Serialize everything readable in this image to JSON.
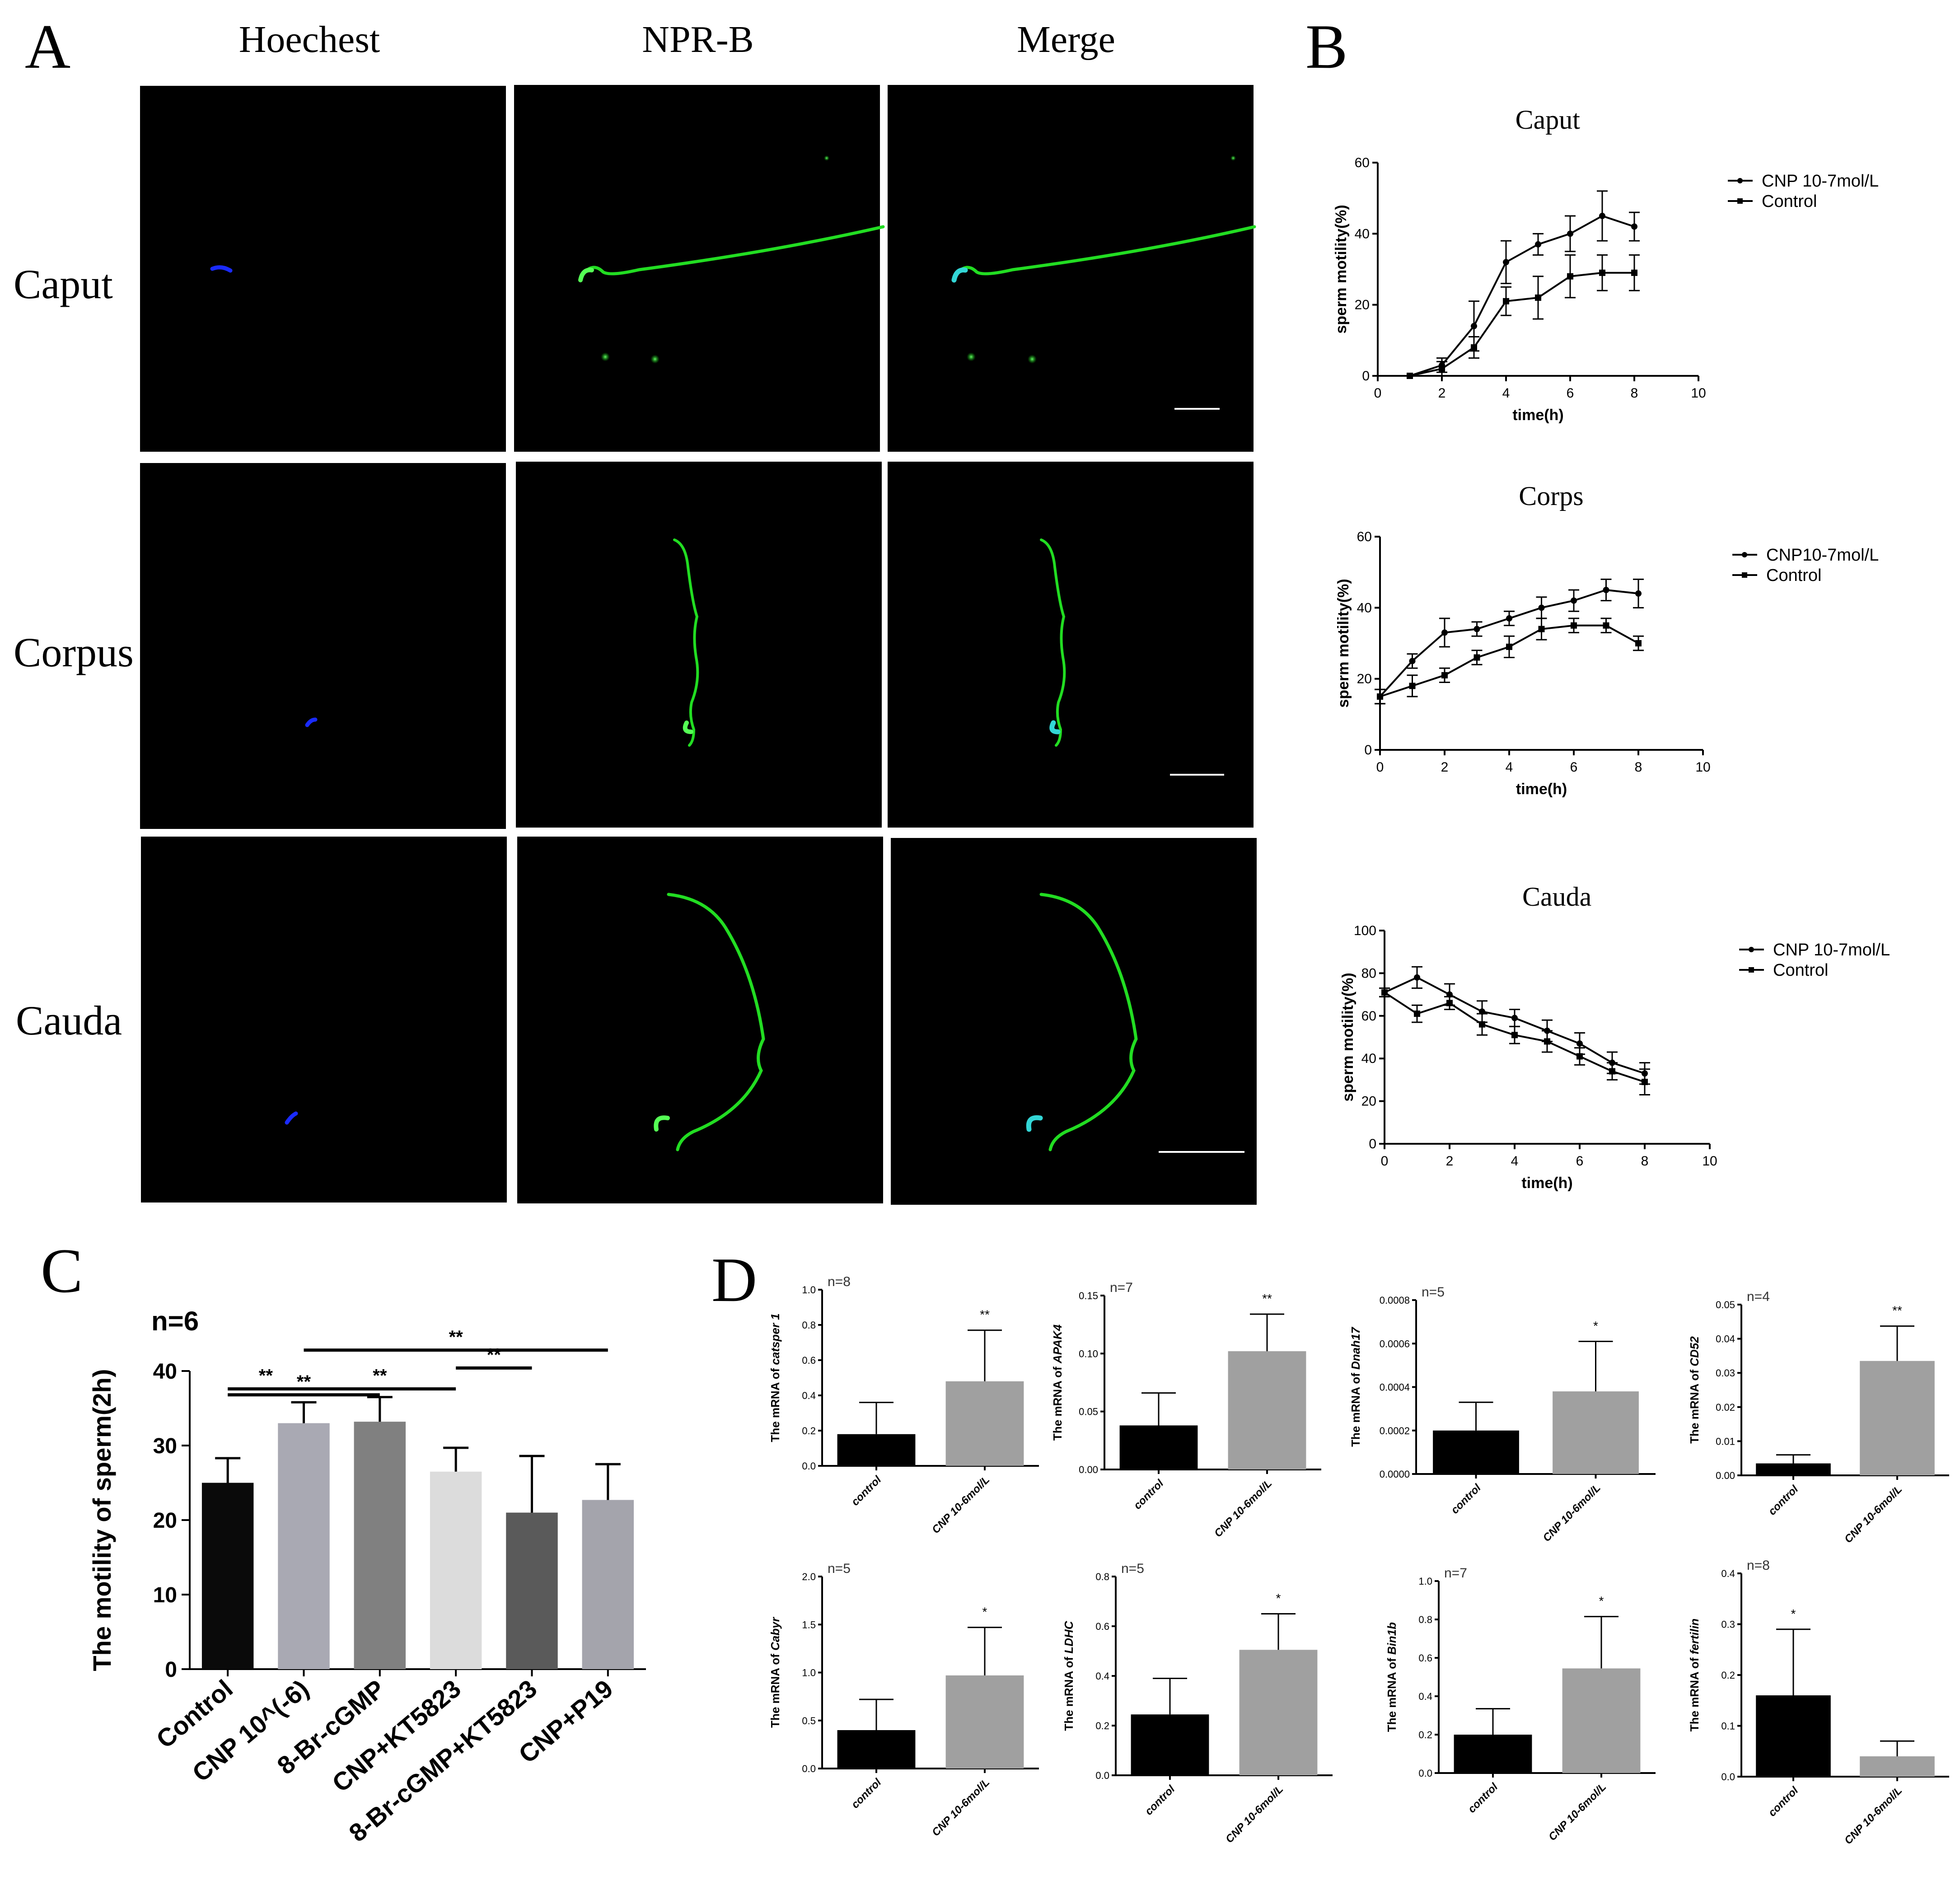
{
  "panel_labels": [
    "A",
    "B",
    "C",
    "D"
  ],
  "micrographs": {
    "columns": [
      "Hoechest",
      "NPR-B",
      "Merge"
    ],
    "rows": [
      "Caput",
      "Corpus",
      "Cauda"
    ],
    "background": "#000000",
    "nucleus_color": "#1a2bff",
    "receptor_color": "#22dd22",
    "merge_head_color": "#33d6d6"
  },
  "chart_data": [
    {
      "id": "B1",
      "type": "line",
      "title": "Caput",
      "xlabel": "time(h)",
      "ylabel": "sperm motility(%)",
      "xlim": [
        0,
        10
      ],
      "ylim": [
        0,
        60
      ],
      "xticks": [
        0,
        2,
        4,
        6,
        8,
        10
      ],
      "yticks": [
        0,
        20,
        40,
        60
      ],
      "grid": false,
      "legend": "right",
      "series": [
        {
          "name": "CNP 10-7mol/L",
          "x": [
            1,
            2,
            3,
            4,
            5,
            6,
            7,
            8
          ],
          "y": [
            0,
            3,
            14,
            32,
            37,
            40,
            45,
            42
          ],
          "err": [
            0,
            2,
            7,
            6,
            3,
            5,
            7,
            4
          ]
        },
        {
          "name": "Control",
          "x": [
            1,
            2,
            3,
            4,
            5,
            6,
            7,
            8
          ],
          "y": [
            0,
            2,
            8,
            21,
            22,
            28,
            29,
            29
          ],
          "err": [
            0,
            2,
            3,
            4,
            6,
            6,
            5,
            5
          ]
        }
      ]
    },
    {
      "id": "B2",
      "type": "line",
      "title": "Corps",
      "xlabel": "time(h)",
      "ylabel": "sperm motility(%)",
      "xlim": [
        0,
        10
      ],
      "ylim": [
        0,
        60
      ],
      "xticks": [
        0,
        2,
        4,
        6,
        8,
        10
      ],
      "yticks": [
        0,
        20,
        40,
        60
      ],
      "grid": false,
      "legend": "right",
      "series": [
        {
          "name": "CNP10-7mol/L",
          "x": [
            0,
            1,
            2,
            3,
            4,
            5,
            6,
            7,
            8
          ],
          "y": [
            15,
            25,
            33,
            34,
            37,
            40,
            42,
            45,
            44
          ],
          "err": [
            2,
            2,
            4,
            2,
            2,
            3,
            3,
            3,
            4
          ]
        },
        {
          "name": "Control",
          "x": [
            0,
            1,
            2,
            3,
            4,
            5,
            6,
            7,
            8
          ],
          "y": [
            15,
            18,
            21,
            26,
            29,
            34,
            35,
            35,
            30
          ],
          "err": [
            2,
            3,
            2,
            2,
            3,
            3,
            2,
            2,
            2
          ]
        }
      ]
    },
    {
      "id": "B3",
      "type": "line",
      "title": "Cauda",
      "xlabel": "time(h)",
      "ylabel": "sperm motility(%)",
      "xlim": [
        0,
        10
      ],
      "ylim": [
        0,
        100
      ],
      "xticks": [
        0,
        2,
        4,
        6,
        8,
        10
      ],
      "yticks": [
        0,
        20,
        40,
        60,
        80,
        100
      ],
      "grid": false,
      "legend": "right",
      "series": [
        {
          "name": "CNP 10-7mol/L",
          "x": [
            0,
            1,
            2,
            3,
            4,
            5,
            6,
            7,
            8
          ],
          "y": [
            71,
            78,
            70,
            62,
            59,
            53,
            47,
            38,
            33
          ],
          "err": [
            2,
            5,
            5,
            5,
            4,
            5,
            5,
            5,
            5
          ]
        },
        {
          "name": "Control",
          "x": [
            0,
            1,
            2,
            3,
            4,
            5,
            6,
            7,
            8
          ],
          "y": [
            71,
            61,
            66,
            56,
            51,
            48,
            41,
            34,
            29
          ],
          "err": [
            2,
            4,
            3,
            5,
            4,
            5,
            4,
            4,
            6
          ]
        }
      ]
    },
    {
      "id": "C",
      "type": "bar",
      "n_label": "n=6",
      "ylabel": "The motility of sperm(2h)",
      "ylim": [
        0,
        40
      ],
      "yticks": [
        0,
        10,
        20,
        30,
        40
      ],
      "categories": [
        "Control",
        "CNP 10^(-6)",
        "8-Br-cGMP",
        "CNP+KT5823",
        "8-Br-cGMP+KT5823",
        "CNP+P19"
      ],
      "values": [
        25,
        33,
        33.2,
        26.5,
        21,
        22.7
      ],
      "errors": [
        3.3,
        2.8,
        3.3,
        3.2,
        7.6,
        4.8
      ],
      "colors": [
        "#0a0a0a",
        "#a9a9b3",
        "#808080",
        "#dcdcdc",
        "#5a5a5a",
        "#a4a4ac"
      ],
      "significance": [
        {
          "from": 0,
          "to": 2,
          "label": "**",
          "y": 36.8
        },
        {
          "from": 0,
          "to": 1,
          "label": "**",
          "y": 37.6
        },
        {
          "from": 1,
          "to": 5,
          "label": "**",
          "y": 42.8
        },
        {
          "from": 1,
          "to": 3,
          "label": "**",
          "y": 37.6
        },
        {
          "from": 3,
          "to": 4,
          "label": "**",
          "y": 40.4
        }
      ]
    },
    {
      "id": "D1",
      "type": "bar",
      "gene": "catsper 1",
      "n_label": "n=8",
      "ylabel_prefix": "The mRNA of",
      "ylim": [
        0,
        1.0
      ],
      "yticks": [
        "0.0",
        "0.2",
        "0.4",
        "0.6",
        "0.8",
        "1.0"
      ],
      "categories": [
        "control",
        "CNP 10-6mol/L"
      ],
      "values": [
        0.18,
        0.48
      ],
      "errors": [
        0.18,
        0.29
      ],
      "sig": [
        "",
        "**"
      ],
      "colors": [
        "#000000",
        "#a0a0a0"
      ]
    },
    {
      "id": "D2",
      "type": "bar",
      "gene": "APAK4",
      "n_label": "n=7",
      "ylabel_prefix": "The mRNA of",
      "ylim": [
        0,
        0.15
      ],
      "yticks": [
        "0.00",
        "0.05",
        "0.10",
        "0.15"
      ],
      "categories": [
        "control",
        "CNP 10-6mol/L"
      ],
      "values": [
        0.038,
        0.102
      ],
      "errors": [
        0.028,
        0.032
      ],
      "sig": [
        "",
        "**"
      ],
      "colors": [
        "#000000",
        "#a0a0a0"
      ]
    },
    {
      "id": "D3",
      "type": "bar",
      "gene": "Dnah17",
      "n_label": "n=5",
      "ylabel_prefix": "The mRNA of",
      "ylim": [
        0,
        0.0008
      ],
      "yticks": [
        "0.0000",
        "0.0002",
        "0.0004",
        "0.0006",
        "0.0008"
      ],
      "categories": [
        "control",
        "CNP 10-6mol/L"
      ],
      "values": [
        0.0002,
        0.00038
      ],
      "errors": [
        0.00013,
        0.00023
      ],
      "sig": [
        "",
        "*"
      ],
      "colors": [
        "#000000",
        "#a0a0a0"
      ]
    },
    {
      "id": "D4",
      "type": "bar",
      "gene": "CD52",
      "n_label": "n=4",
      "ylabel_prefix": "The mRNA of",
      "ylim": [
        0,
        0.05
      ],
      "yticks": [
        "0.00",
        "0.01",
        "0.02",
        "0.03",
        "0.04",
        "0.05"
      ],
      "categories": [
        "control",
        "CNP 10-6mol/L"
      ],
      "values": [
        0.0035,
        0.0335
      ],
      "errors": [
        0.0025,
        0.0102
      ],
      "sig": [
        "",
        "**"
      ],
      "colors": [
        "#000000",
        "#a0a0a0"
      ]
    },
    {
      "id": "D5",
      "type": "bar",
      "gene": "Cabyr",
      "n_label": "n=5",
      "ylabel_prefix": "The mRNA of",
      "ylim": [
        0,
        2.0
      ],
      "yticks": [
        "0.0",
        "0.5",
        "1.0",
        "1.5",
        "2.0"
      ],
      "categories": [
        "control",
        "CNP 10-6mol/L"
      ],
      "values": [
        0.4,
        0.97
      ],
      "errors": [
        0.32,
        0.5
      ],
      "sig": [
        "",
        "*"
      ],
      "colors": [
        "#000000",
        "#a0a0a0"
      ]
    },
    {
      "id": "D6",
      "type": "bar",
      "gene": "LDHC",
      "n_label": "n=5",
      "ylabel_prefix": "The mRNA of",
      "ylim": [
        0,
        0.8
      ],
      "yticks": [
        "0.0",
        "0.2",
        "0.4",
        "0.6",
        "0.8"
      ],
      "categories": [
        "control",
        "CNP 10-6mol/L"
      ],
      "values": [
        0.245,
        0.505
      ],
      "errors": [
        0.145,
        0.145
      ],
      "sig": [
        "",
        "*"
      ],
      "colors": [
        "#000000",
        "#a0a0a0"
      ]
    },
    {
      "id": "D7",
      "type": "bar",
      "gene": "Bin1b",
      "n_label": "n=7",
      "ylabel_prefix": "The mRNA of",
      "ylim": [
        0,
        1.0
      ],
      "yticks": [
        "0.0",
        "0.2",
        "0.4",
        "0.6",
        "0.8",
        "1.0"
      ],
      "categories": [
        "control",
        "CNP 10-6mol/L"
      ],
      "values": [
        0.2,
        0.545
      ],
      "errors": [
        0.135,
        0.27
      ],
      "sig": [
        "",
        "*"
      ],
      "colors": [
        "#000000",
        "#a0a0a0"
      ]
    },
    {
      "id": "D8",
      "type": "bar",
      "gene": "fertilin",
      "n_label": "n=8",
      "ylabel_prefix": "The mRNA of",
      "ylim": [
        0,
        0.4
      ],
      "yticks": [
        "0.0",
        "0.1",
        "0.2",
        "0.3",
        "0.4"
      ],
      "categories": [
        "control",
        "CNP 10-6mol/L"
      ],
      "values": [
        0.16,
        0.04
      ],
      "errors": [
        0.13,
        0.03
      ],
      "sig": [
        "*",
        ""
      ],
      "colors": [
        "#000000",
        "#a0a0a0"
      ]
    }
  ]
}
